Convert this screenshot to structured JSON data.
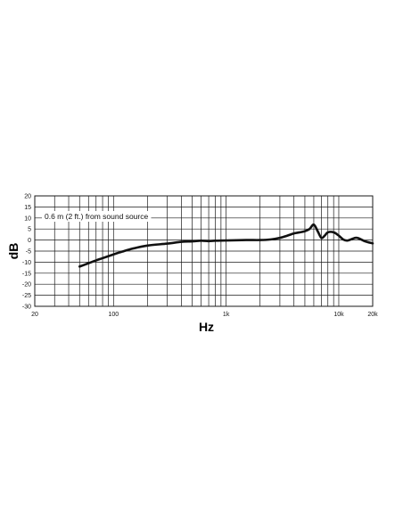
{
  "chart_data": {
    "type": "line",
    "title": "",
    "xlabel": "Hz",
    "ylabel": "dB",
    "x_scale": "log",
    "xlim": [
      20,
      20000
    ],
    "ylim": [
      -30,
      20
    ],
    "grid": true,
    "x_tick_labels": [
      {
        "value": 20,
        "label": "20"
      },
      {
        "value": 100,
        "label": "100"
      },
      {
        "value": 1000,
        "label": "1k"
      },
      {
        "value": 10000,
        "label": "10k"
      },
      {
        "value": 20000,
        "label": "20k"
      }
    ],
    "x_grid_values": [
      20,
      30,
      40,
      50,
      60,
      70,
      80,
      90,
      100,
      200,
      300,
      400,
      500,
      600,
      700,
      800,
      900,
      1000,
      2000,
      3000,
      4000,
      5000,
      6000,
      7000,
      8000,
      9000,
      10000,
      20000
    ],
    "y_ticks": [
      20,
      15,
      10,
      5,
      0,
      -5,
      -10,
      -15,
      -20,
      -25,
      -30
    ],
    "annotation": "0.6 m (2 ft.) from sound source",
    "series": [
      {
        "x": [
          50,
          60,
          70,
          80,
          100,
          120,
          150,
          200,
          300,
          400,
          500,
          600,
          700,
          800,
          1000,
          1500,
          2000,
          2500,
          3000,
          3500,
          4000,
          4500,
          5000,
          5500,
          6000,
          6500,
          7000,
          7500,
          8000,
          9000,
          10000,
          11000,
          12000,
          14000,
          15000,
          17000,
          20000
        ],
        "y": [
          -12,
          -10.5,
          -9.2,
          -8.2,
          -6.5,
          -5.2,
          -3.8,
          -2.5,
          -1.6,
          -0.8,
          -0.6,
          -0.3,
          -0.5,
          -0.3,
          -0.2,
          0,
          0,
          0.3,
          1,
          2,
          3,
          3.5,
          4,
          5,
          7,
          4,
          1,
          2,
          3.5,
          3.5,
          2,
          0.2,
          -0.2,
          1,
          0.8,
          -0.5,
          -1.5
        ]
      }
    ]
  }
}
